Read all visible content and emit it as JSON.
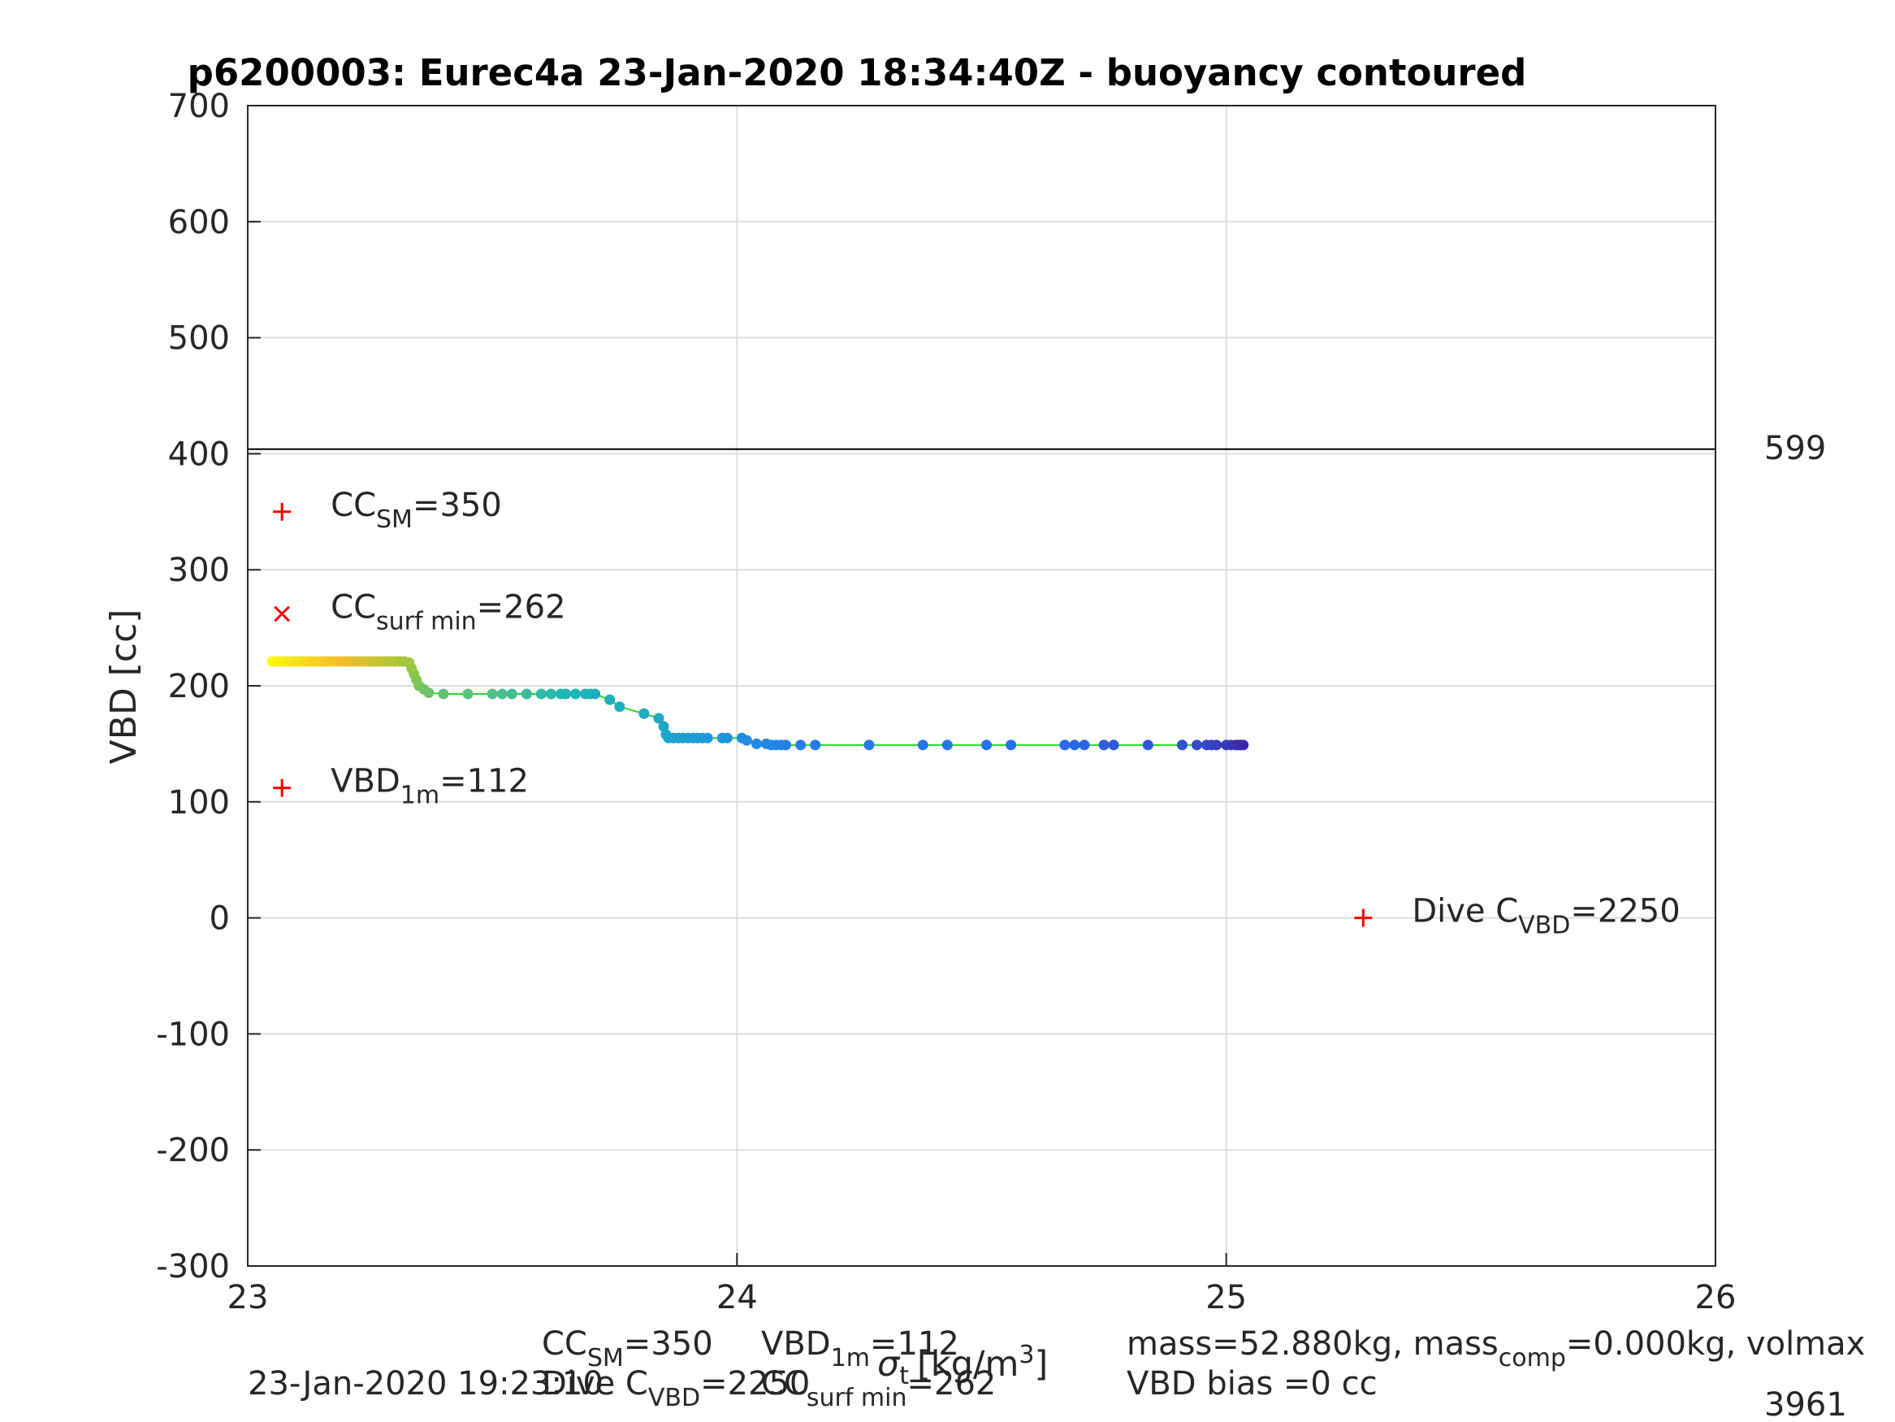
{
  "chart_data": {
    "type": "scatter",
    "title": "p6200003: Eurec4a 23-Jan-2020 18:34:40Z - buoyancy contoured",
    "xlabel": "σ_t [kg/m^3]",
    "xlabel_parts": {
      "sigma": "σ",
      "sub": "t",
      "units_pre": "[kg/m",
      "units_sup": "3",
      "units_post": "]"
    },
    "ylabel": "VBD [cc]",
    "xlim": [
      23,
      26
    ],
    "ylim": [
      -300,
      700
    ],
    "x_ticks": [
      "23",
      "24",
      "25",
      "26"
    ],
    "y_ticks": [
      "-300",
      "-200",
      "-100",
      "0",
      "100",
      "200",
      "300",
      "400",
      "500",
      "600",
      "700"
    ],
    "grid": true,
    "reference_line": {
      "y": 404,
      "label": "599"
    },
    "markers": [
      {
        "symbol": "+",
        "x": 23.07,
        "y": 350,
        "label_main": "CC",
        "label_sub": "SM",
        "label_rest": "=350",
        "color": "#ff0000"
      },
      {
        "symbol": "×",
        "x": 23.07,
        "y": 262,
        "label_main": "CC",
        "label_sub": "surf min",
        "label_rest": "=262",
        "color": "#ff0000"
      },
      {
        "symbol": "+",
        "x": 23.07,
        "y": 112,
        "label_main": "VBD",
        "label_sub": "1m",
        "label_rest": "=112",
        "color": "#ff0000"
      },
      {
        "symbol": "+",
        "x": 25.28,
        "y": 0,
        "label_main": "Dive C",
        "label_sub": "VBD",
        "label_rest": "=2250",
        "color": "#ff0000"
      }
    ],
    "line_color": "#22dd22",
    "series": [
      {
        "values_x": [
          23.05,
          23.06,
          23.07,
          23.08,
          23.09,
          23.1,
          23.11,
          23.12,
          23.13,
          23.14,
          23.15,
          23.16,
          23.17,
          23.18,
          23.19,
          23.2,
          23.21,
          23.22,
          23.23,
          23.24,
          23.25,
          23.26,
          23.27,
          23.28,
          23.29,
          23.3,
          23.31,
          23.32,
          23.33,
          23.335,
          23.34,
          23.345,
          23.35,
          23.36,
          23.37,
          23.4,
          23.45,
          23.5,
          23.52,
          23.54,
          23.57,
          23.6,
          23.62,
          23.64,
          23.65,
          23.67,
          23.69,
          23.7,
          23.71,
          23.74,
          23.76,
          23.81,
          23.84,
          23.85,
          23.855,
          23.86,
          23.87,
          23.88,
          23.89,
          23.9,
          23.91,
          23.92,
          23.93,
          23.94,
          23.97,
          23.98,
          24.01,
          24.02,
          24.04,
          24.06,
          24.07,
          24.08,
          24.09,
          24.1,
          24.13,
          24.16,
          24.27,
          24.38,
          24.43,
          24.51,
          24.56,
          24.67,
          24.69,
          24.71,
          24.75,
          24.77,
          24.84,
          24.91,
          24.94,
          24.96,
          24.97,
          24.98,
          25.0,
          25.01,
          25.02,
          25.025,
          25.03,
          25.035
        ],
        "values_y": [
          221,
          221,
          221,
          221,
          221,
          221,
          221,
          221,
          221,
          221,
          221,
          221,
          221,
          221,
          221,
          221,
          221,
          221,
          221,
          221,
          221,
          221,
          221,
          221,
          221,
          221,
          221,
          221,
          220,
          215,
          210,
          205,
          200,
          197,
          194,
          193,
          193,
          193,
          193,
          193,
          193,
          193,
          193,
          193,
          193,
          193,
          193,
          193,
          193,
          188,
          182,
          176,
          172,
          165,
          158,
          155,
          155,
          155,
          155,
          155,
          155,
          155,
          155,
          155,
          155,
          155,
          155,
          153,
          150,
          150,
          149,
          149,
          149,
          149,
          149,
          149,
          149,
          149,
          149,
          149,
          149,
          149,
          149,
          149,
          149,
          149,
          149,
          149,
          149,
          149,
          149,
          149,
          149,
          149,
          149,
          149,
          149,
          149
        ]
      }
    ],
    "colormap": "parula"
  },
  "footer": {
    "timestamp": "23-Jan-2020 19:23:10",
    "cc_sm": {
      "main": "CC",
      "sub": "SM",
      "rest": "=350"
    },
    "vbd_1m": {
      "main": "VBD",
      "sub": "1m",
      "rest": "=112"
    },
    "dive_c": {
      "main": "Dive C",
      "sub": "VBD",
      "rest": "=2250"
    },
    "cc_surf": {
      "main": "CC",
      "sub": "surf min",
      "rest": "=262"
    },
    "mass_line": {
      "part1": "mass=52.880kg, mass",
      "sub": "comp",
      "part2": "=0.000kg, volmax"
    },
    "vbd_bias": "VBD bias =0 cc",
    "corner_number": "3961"
  }
}
